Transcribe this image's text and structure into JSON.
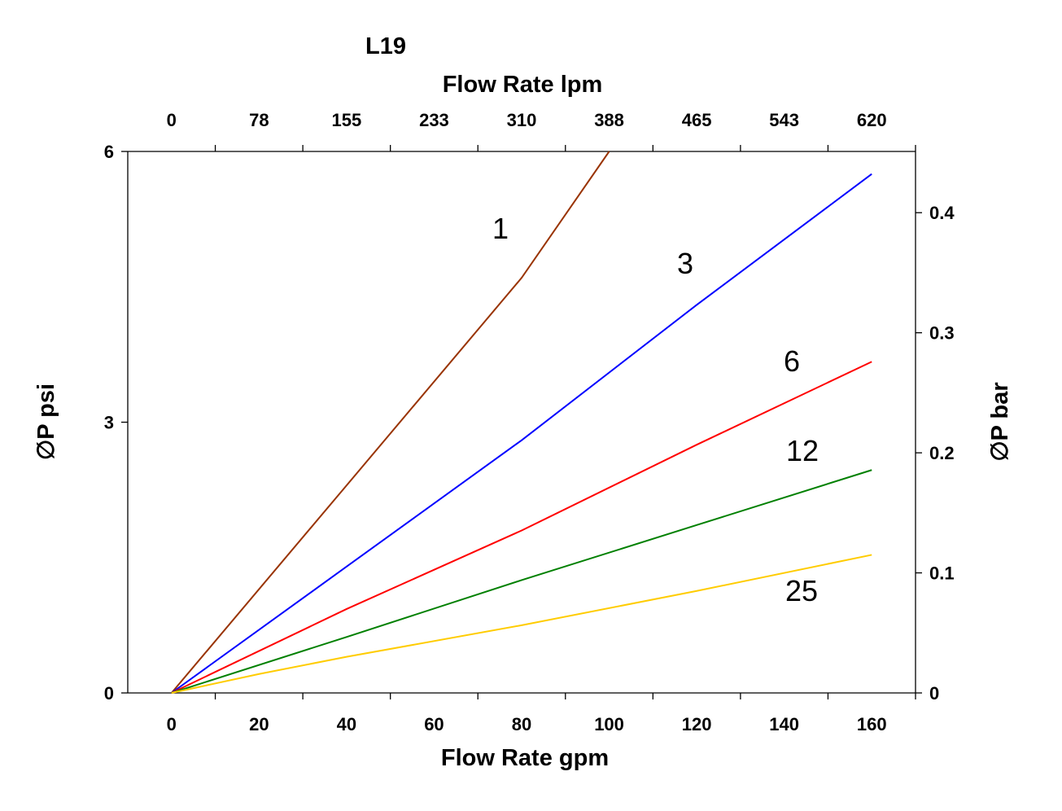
{
  "chart_data": {
    "type": "line",
    "title": "L19",
    "xlabel": "Flow Rate gpm",
    "x2label": "Flow Rate lpm",
    "ylabel": "∅P psi",
    "y2label": "∅P bar",
    "xlim": [
      -10,
      170
    ],
    "ylim": [
      0,
      6
    ],
    "y2lim": [
      0,
      0.451
    ],
    "xticks": [
      0,
      20,
      40,
      60,
      80,
      100,
      120,
      140,
      160
    ],
    "xtick_labels": [
      "0",
      "20",
      "40",
      "60",
      "80",
      "100",
      "120",
      "140",
      "160"
    ],
    "x2tick_labels": [
      "0",
      "78",
      "155",
      "233",
      "310",
      "388",
      "465",
      "543",
      "620"
    ],
    "yticks": [
      0,
      3,
      6
    ],
    "ytick_labels": [
      "0",
      "3",
      "6"
    ],
    "y2ticks": [
      0,
      0.1,
      0.2,
      0.3,
      0.4
    ],
    "y2tick_labels": [
      "0",
      "0.1",
      "0.2",
      "0.3",
      "0.4"
    ],
    "grid": false,
    "series": [
      {
        "name": "1",
        "color": "#993300",
        "x": [
          0,
          40,
          80,
          100
        ],
        "y": [
          0,
          2.3,
          4.6,
          6.0
        ]
      },
      {
        "name": "3",
        "color": "#0000FF",
        "x": [
          0,
          40,
          80,
          120,
          160
        ],
        "y": [
          0,
          1.4,
          2.8,
          4.3,
          5.75
        ]
      },
      {
        "name": "6",
        "color": "#FF0000",
        "x": [
          0,
          40,
          80,
          120,
          160
        ],
        "y": [
          0,
          0.93,
          1.8,
          2.75,
          3.67
        ]
      },
      {
        "name": "12",
        "color": "#008000",
        "x": [
          0,
          40,
          80,
          120,
          160
        ],
        "y": [
          0,
          0.62,
          1.25,
          1.86,
          2.47
        ]
      },
      {
        "name": "25",
        "color": "#FFCC00",
        "x": [
          0,
          20,
          40,
          80,
          120,
          160
        ],
        "y": [
          0,
          0.21,
          0.4,
          0.75,
          1.13,
          1.53
        ]
      }
    ]
  }
}
